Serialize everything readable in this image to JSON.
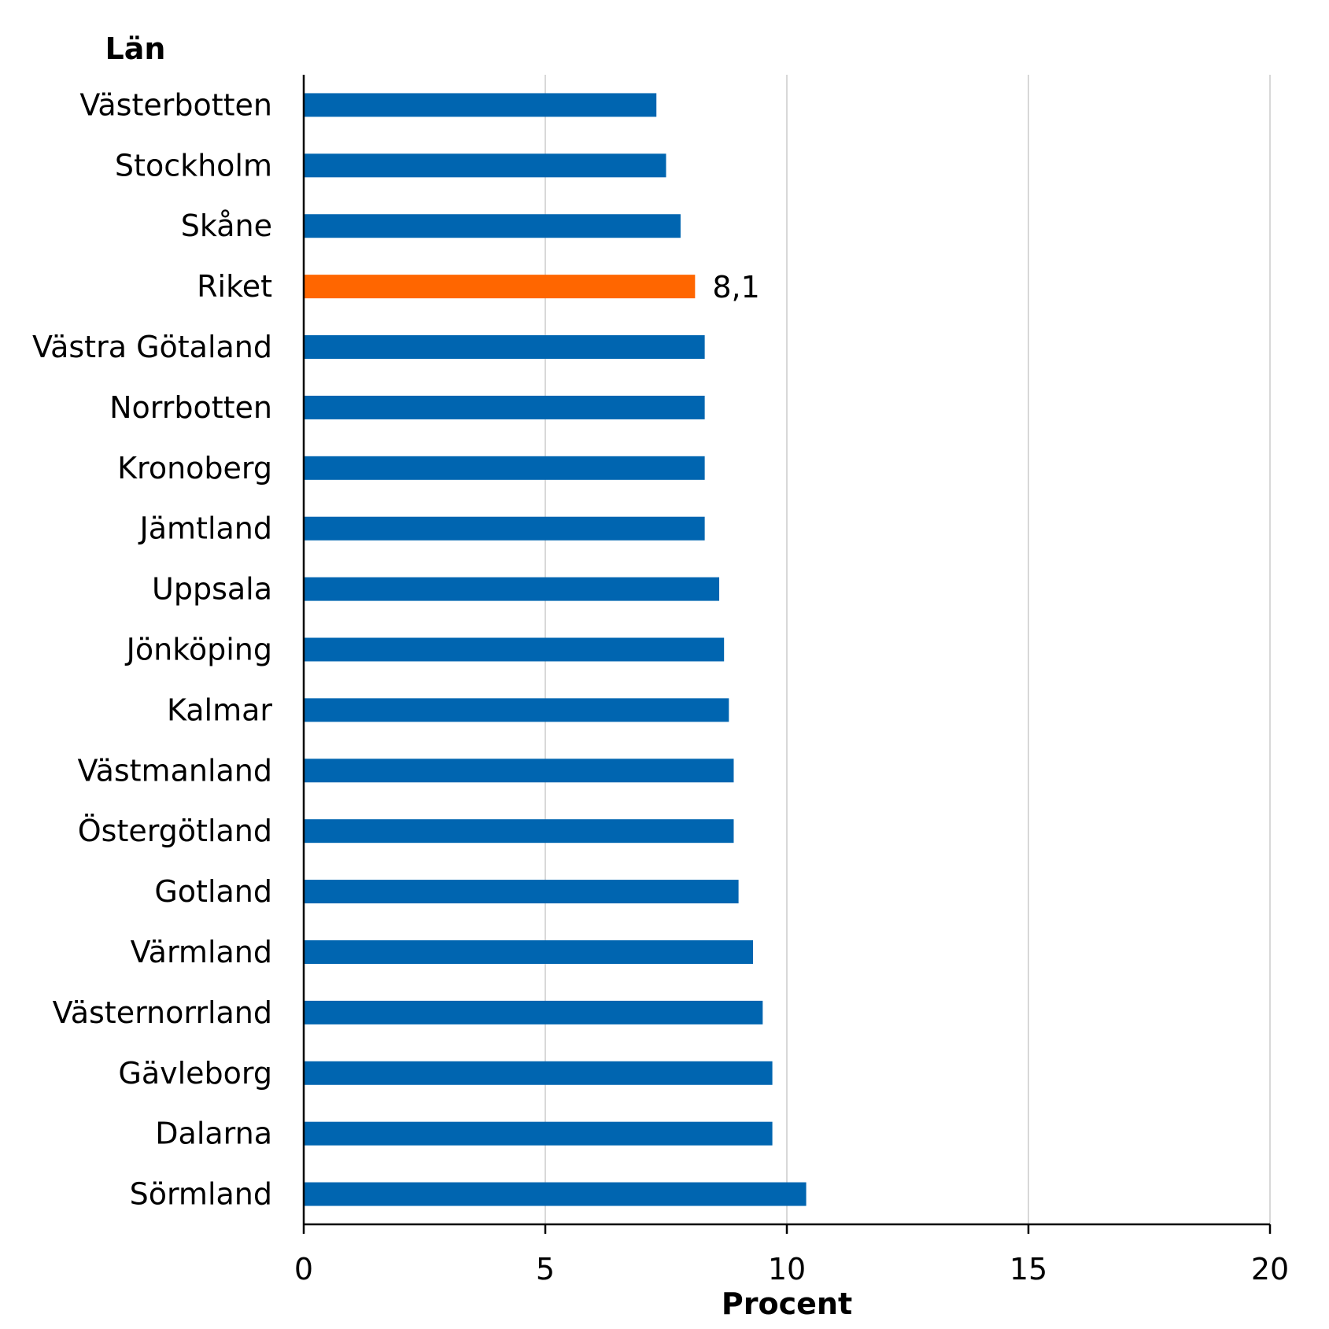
{
  "chart_data": {
    "type": "bar",
    "orientation": "horizontal",
    "categories": [
      "Västerbotten",
      "Stockholm",
      "Skåne",
      "Riket",
      "Västra Götaland",
      "Norrbotten",
      "Kronoberg",
      "Jämtland",
      "Uppsala",
      "Jönköping",
      "Kalmar",
      "Västmanland",
      "Östergötland",
      "Gotland",
      "Värmland",
      "Västernorrland",
      "Gävleborg",
      "Dalarna",
      "Sörmland"
    ],
    "values": [
      7.3,
      7.5,
      7.8,
      8.1,
      8.3,
      8.3,
      8.3,
      8.3,
      8.6,
      8.7,
      8.8,
      8.9,
      8.9,
      9.0,
      9.3,
      9.5,
      9.7,
      9.7,
      10.4
    ],
    "highlight_category": "Riket",
    "data_labels": [
      {
        "category": "Riket",
        "text": "8,1"
      }
    ],
    "xlabel": "Procent",
    "ylabel": "Län",
    "xlim": [
      0,
      20
    ],
    "xticks": [
      0,
      5,
      10,
      15,
      20
    ],
    "xtick_labels": [
      "0",
      "5",
      "10",
      "15",
      "20"
    ],
    "grid": "vertical",
    "colors": {
      "bar": "#0065b0",
      "highlight": "#ff6600",
      "grid": "#cccccc",
      "axis": "#000000"
    }
  }
}
